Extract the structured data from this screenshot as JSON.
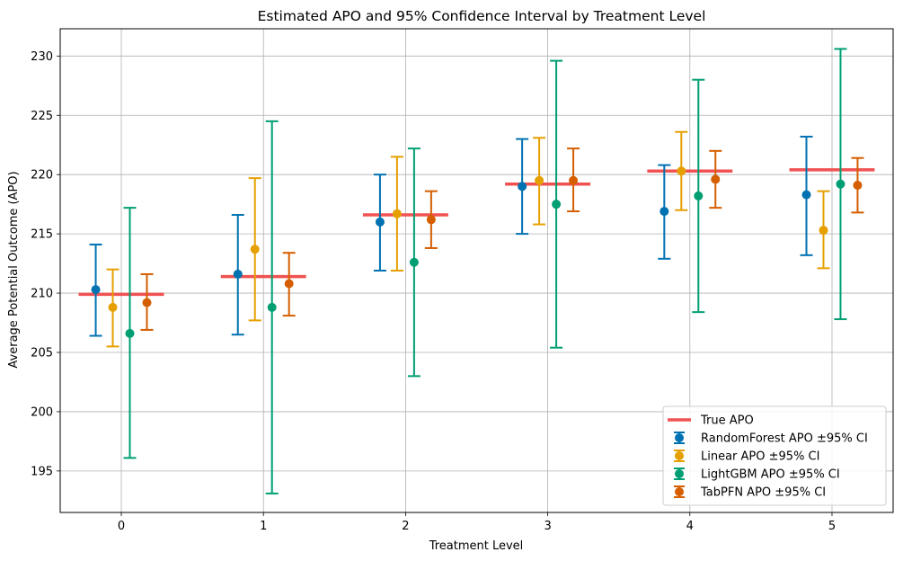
{
  "chart_data": {
    "type": "errorbar",
    "title": "Estimated APO and 95% Confidence Interval by Treatment Level",
    "xlabel": "Treatment Level",
    "ylabel": "Average Potential Outcome (APO)",
    "categories": [
      0,
      1,
      2,
      3,
      4,
      5
    ],
    "xlim": [
      -0.43,
      5.43
    ],
    "ylim": [
      191.5,
      232.3
    ],
    "yticks": [
      195,
      200,
      205,
      210,
      215,
      220,
      225,
      230
    ],
    "grid": true,
    "legend_position": "lower-right",
    "true_apo": {
      "name": "True APO",
      "color": "#f05252",
      "values": [
        209.9,
        211.4,
        216.6,
        219.2,
        220.3,
        220.4
      ]
    },
    "series": [
      {
        "name": "RandomForest APO ±95% CI",
        "color": "#0072b2",
        "offset": -0.18,
        "values": [
          210.3,
          211.6,
          216.0,
          219.0,
          216.9,
          218.3
        ],
        "lower": [
          206.4,
          206.5,
          211.9,
          215.0,
          212.9,
          213.2
        ],
        "upper": [
          214.1,
          216.6,
          220.0,
          223.0,
          220.8,
          223.2
        ]
      },
      {
        "name": "Linear APO ±95% CI",
        "color": "#e69f00",
        "offset": -0.06,
        "values": [
          208.8,
          213.7,
          216.7,
          219.5,
          220.3,
          215.3
        ],
        "lower": [
          205.5,
          207.7,
          211.9,
          215.8,
          217.0,
          212.1
        ],
        "upper": [
          212.0,
          219.7,
          221.5,
          223.1,
          223.6,
          218.6
        ]
      },
      {
        "name": "LightGBM APO ±95% CI",
        "color": "#009e73",
        "offset": 0.06,
        "values": [
          206.6,
          208.8,
          212.6,
          217.5,
          218.2,
          219.2
        ],
        "lower": [
          196.1,
          193.1,
          203.0,
          205.4,
          208.4,
          207.8
        ],
        "upper": [
          217.2,
          224.5,
          222.2,
          229.6,
          228.0,
          230.6
        ]
      },
      {
        "name": "TabPFN APO ±95% CI",
        "color": "#d55e00",
        "offset": 0.18,
        "values": [
          209.2,
          210.8,
          216.2,
          219.5,
          219.6,
          219.1
        ],
        "lower": [
          206.9,
          208.1,
          213.8,
          216.9,
          217.2,
          216.8
        ],
        "upper": [
          211.6,
          213.4,
          218.6,
          222.2,
          222.0,
          221.4
        ]
      }
    ]
  }
}
